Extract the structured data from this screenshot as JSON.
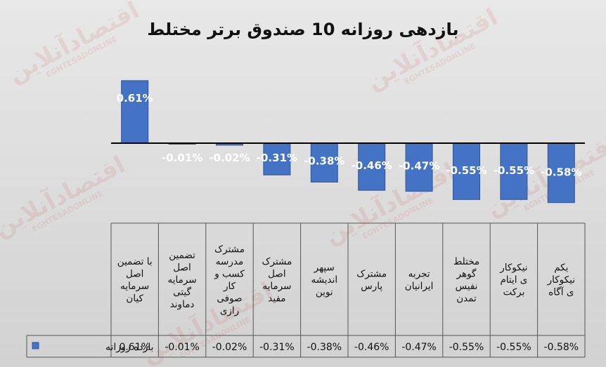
{
  "chart_data": {
    "type": "bar",
    "title": "بازدهی روزانه 10 صندوق برتر مختلط",
    "categories": [
      "با تضمین اصل سرمایه کیان",
      "تضمین اصل سرمایه گیتی دماوند",
      "مشترک مدرسه کسب و کار صوفی رازی",
      "مشترک اصل سرمایه مفید",
      "سپهر اندیشه نوین",
      "مشترک پارس",
      "تجربه ایرانیان",
      "مختلط گوهر نفیس تمدن",
      "نیکوکار ی ایتام برکت",
      "یکم نیکوکار ی آگاه"
    ],
    "category_lines": [
      [
        "با تضمین",
        "اصل",
        "سرمایه",
        "کیان"
      ],
      [
        "تضمین",
        "اصل",
        "سرمایه",
        "گیتی",
        "دماوند"
      ],
      [
        "مشترک",
        "مدرسه",
        "کسب و",
        "کار",
        "صوفی",
        "رازی"
      ],
      [
        "مشترک",
        "اصل",
        "سرمایه",
        "مفید"
      ],
      [
        "سپهر",
        "اندیشه",
        "نوین"
      ],
      [
        "مشترک",
        "پارس"
      ],
      [
        "تجربه",
        "ایرانیان"
      ],
      [
        "مختلط",
        "گوهر",
        "نفیس",
        "تمدن"
      ],
      [
        "نیکوکار",
        "ی ایتام",
        "برکت"
      ],
      [
        "یکم",
        "نیکوکار",
        "ی آگاه"
      ]
    ],
    "series": [
      {
        "name": "بازده روزانه",
        "values": [
          0.61,
          -0.01,
          -0.02,
          -0.31,
          -0.38,
          -0.46,
          -0.47,
          -0.55,
          -0.55,
          -0.58
        ],
        "labels": [
          "0.61%",
          "-0.01%",
          "-0.02%",
          "-0.31%",
          "-0.38%",
          "-0.46%",
          "-0.47%",
          "-0.55%",
          "-0.55%",
          "-0.58%"
        ]
      }
    ],
    "ylim": [
      -0.58,
      0.61
    ],
    "grid": false,
    "legend": "bottom-left (inside data table)",
    "colors": {
      "bar": "#4472C4",
      "bar_edge": "#2F5597",
      "axis": "#000000"
    }
  },
  "watermark": {
    "text": "اقتصادآنلاین",
    "subtext": "EGHTESADONLINE"
  }
}
